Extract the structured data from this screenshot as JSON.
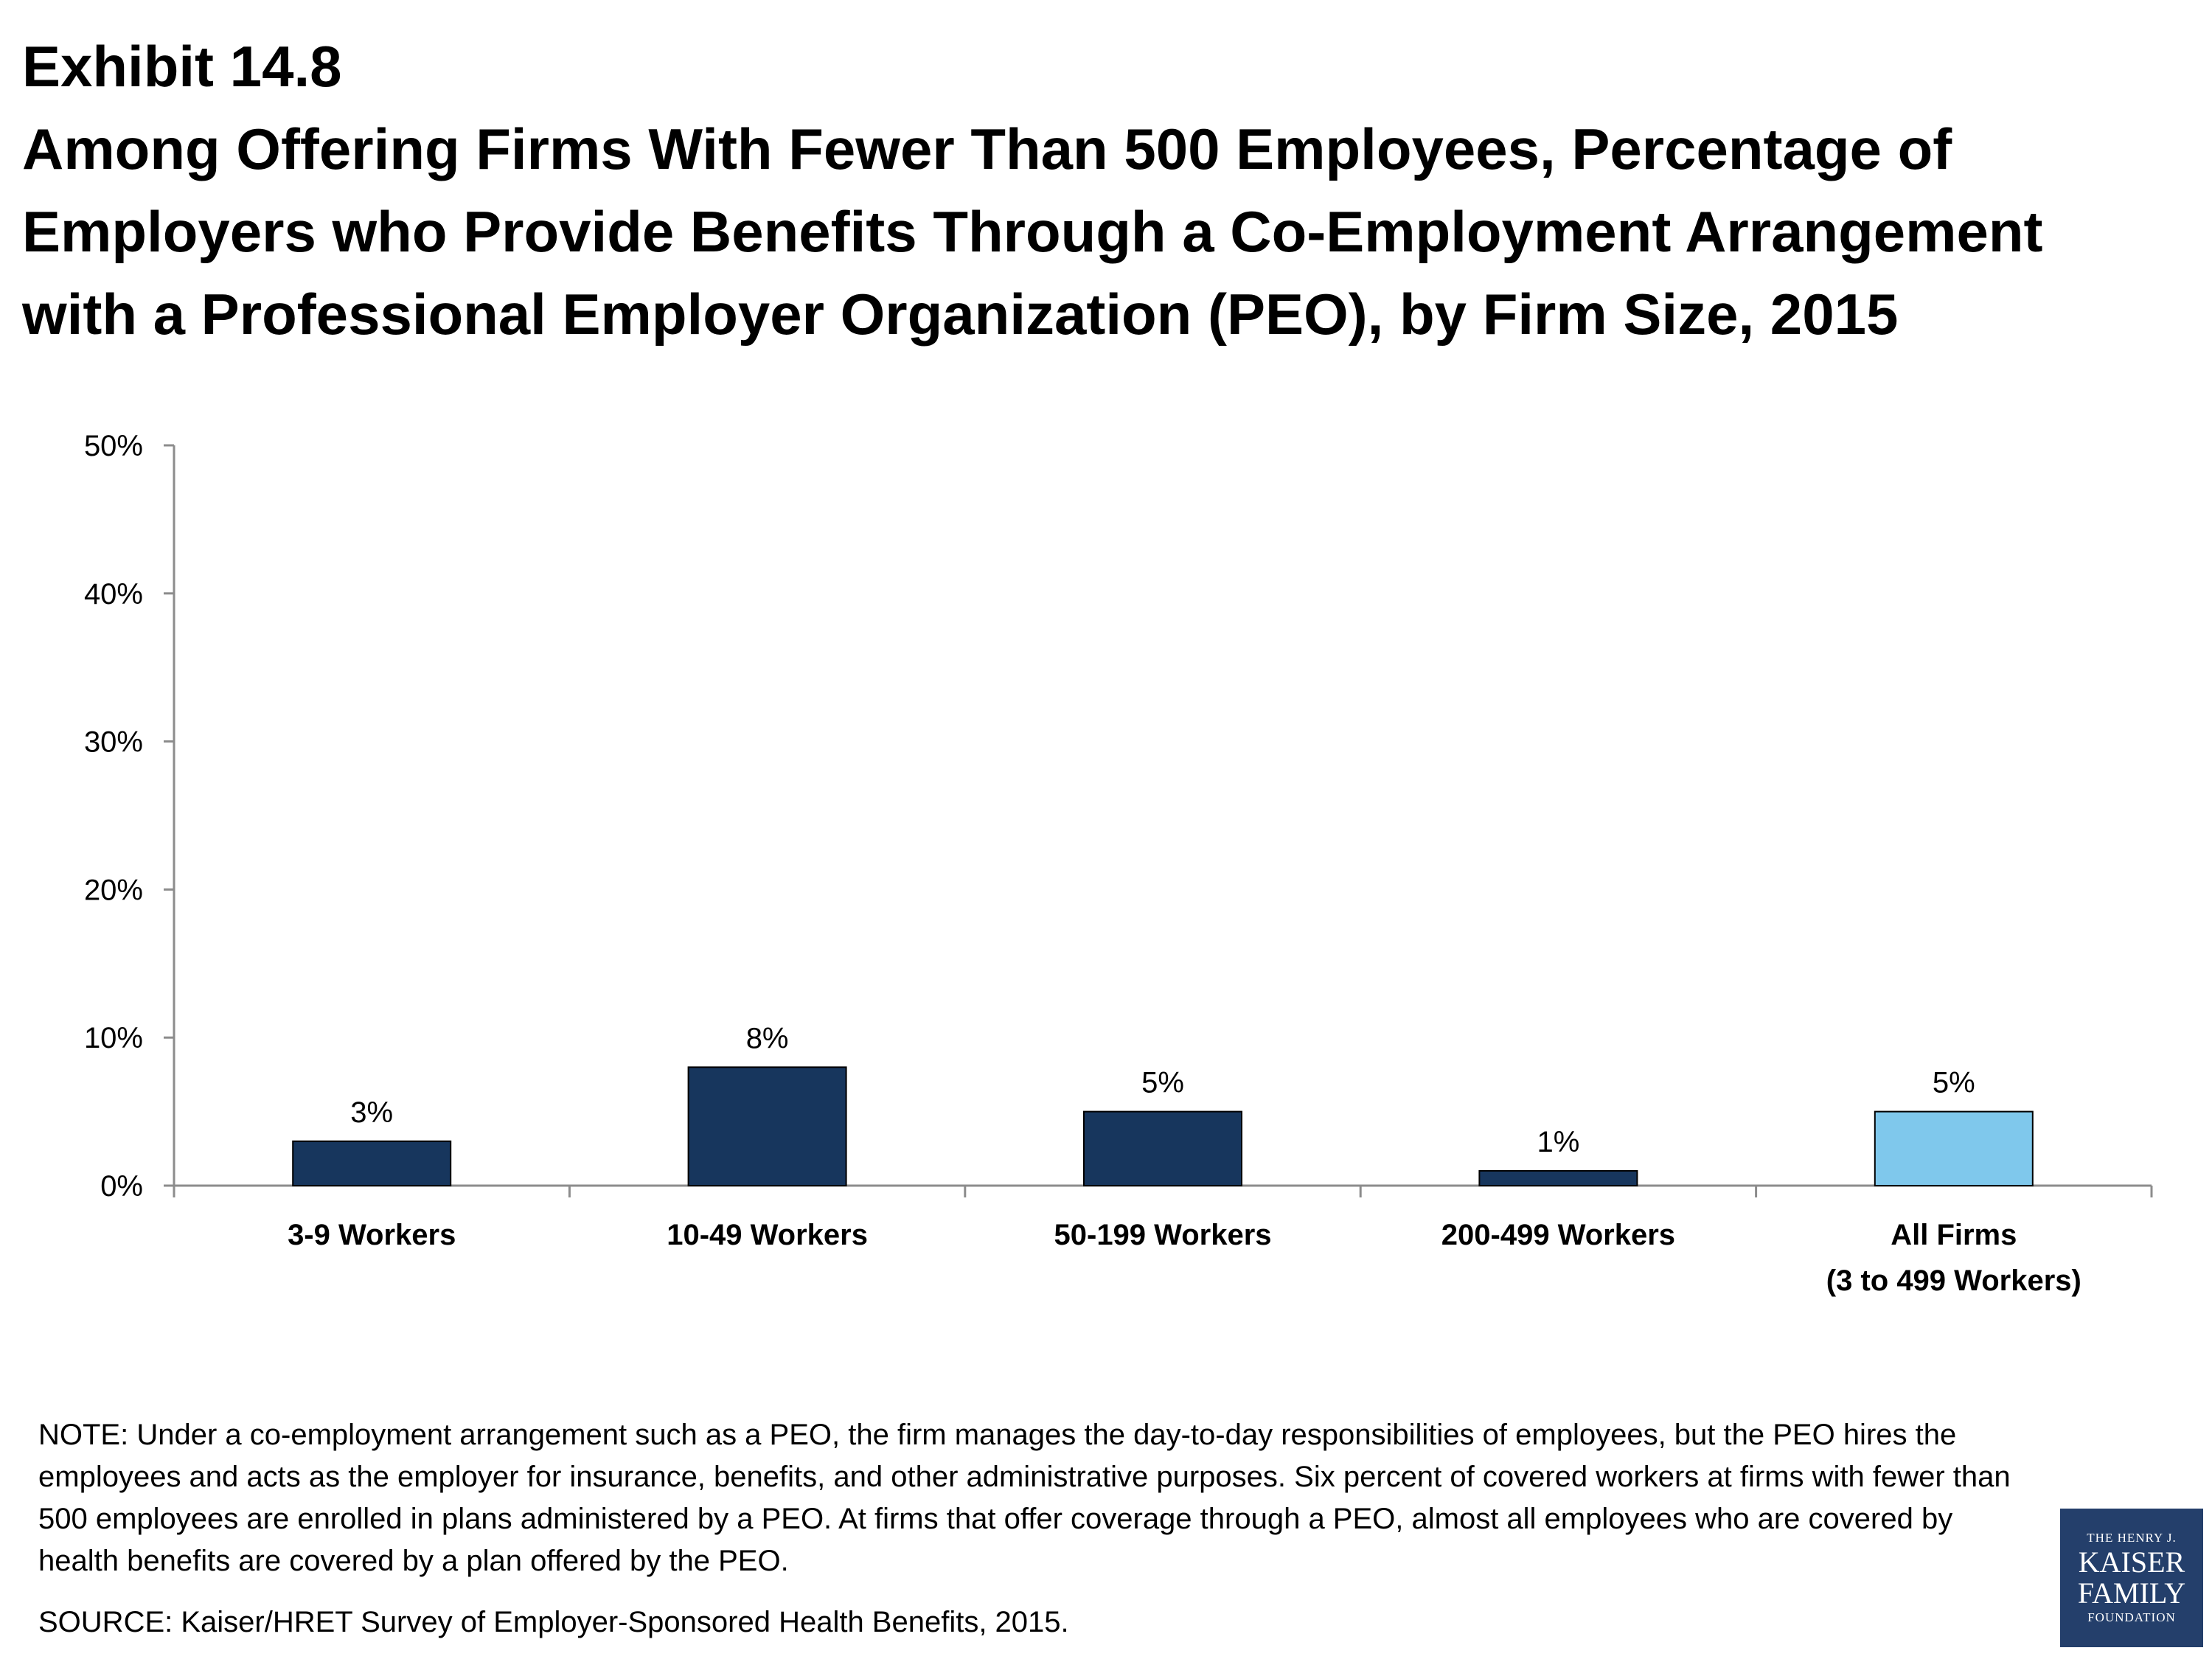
{
  "header": {
    "exhibit": "Exhibit 14.8",
    "title": "Among Offering Firms With Fewer Than 500 Employees, Percentage of Employers who Provide Benefits Through a Co-Employment Arrangement with a Professional Employer Organization (PEO), by Firm Size, 2015"
  },
  "chart_data": {
    "type": "bar",
    "categories": [
      "3-9 Workers",
      "10-49 Workers",
      "50-199 Workers",
      "200-499 Workers",
      "All Firms\n(3 to 499 Workers)"
    ],
    "values": [
      3,
      8,
      5,
      1,
      5
    ],
    "data_labels": [
      "3%",
      "8%",
      "5%",
      "1%",
      "5%"
    ],
    "bar_colors": [
      "#17365d",
      "#17365d",
      "#17365d",
      "#17365d",
      "#7fc8ec"
    ],
    "ylim": [
      0,
      50
    ],
    "yticks": [
      0,
      10,
      20,
      30,
      40,
      50
    ],
    "ytick_labels": [
      "0%",
      "10%",
      "20%",
      "30%",
      "40%",
      "50%"
    ],
    "xlabel": "",
    "ylabel": "",
    "grid": false
  },
  "footer": {
    "note": "NOTE: Under a co-employment arrangement such as a PEO, the firm manages the day-to-day responsibilities of employees, but the PEO hires the employees and acts as the employer for insurance, benefits, and other administrative purposes. Six percent of covered workers at firms with fewer than 500 employees are enrolled in plans administered by a PEO. At firms that offer coverage through a PEO, almost all employees who are covered by health benefits are covered by a plan offered by the PEO.",
    "source": "SOURCE: Kaiser/HRET Survey of Employer-Sponsored Health Benefits, 2015."
  },
  "logo": {
    "line1": "THE HENRY J.",
    "line2": "KAISER",
    "line3": "FAMILY",
    "line4": "FOUNDATION"
  }
}
